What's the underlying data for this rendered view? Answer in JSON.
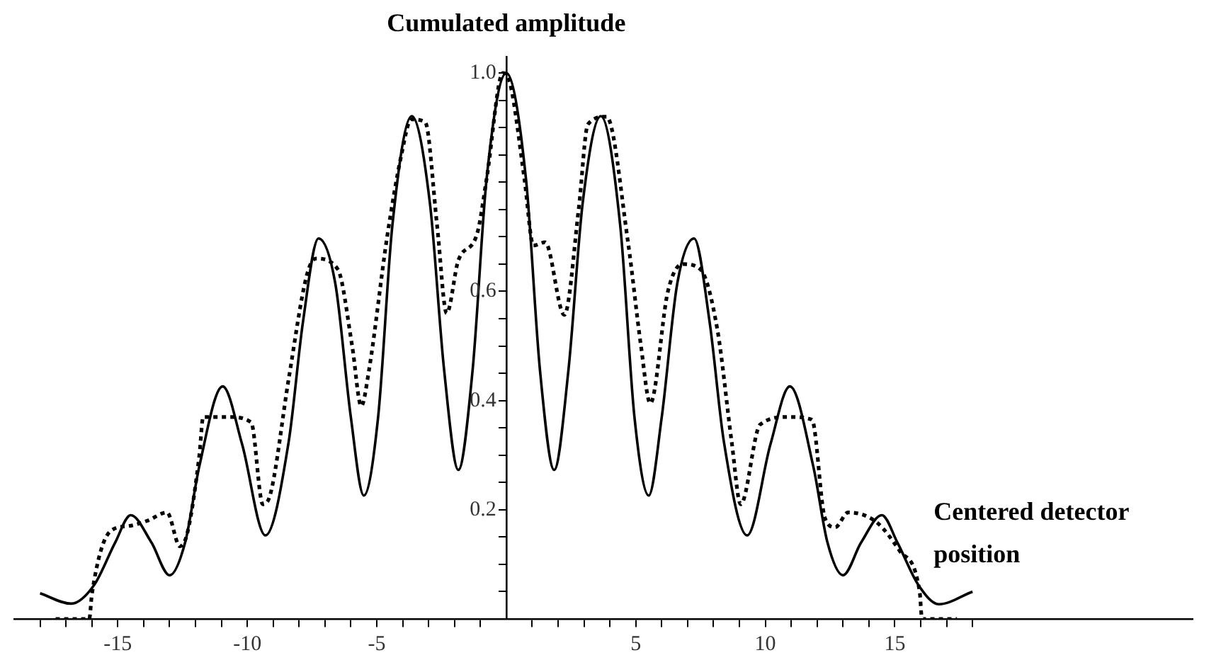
{
  "chart_data": {
    "type": "line",
    "xlabel": "Centered detector position",
    "ylabel": "Cumulated amplitude",
    "xlim": [
      -19,
      26.5
    ],
    "ylim": [
      0,
      1.03
    ],
    "xticks": [
      {
        "value": -18,
        "label": null
      },
      {
        "value": -17,
        "label": null
      },
      {
        "value": -16,
        "label": null
      },
      -15,
      {
        "value": -14,
        "label": null
      },
      {
        "value": -13,
        "label": null
      },
      {
        "value": -12,
        "label": null
      },
      {
        "value": -11,
        "label": null
      },
      -10,
      {
        "value": -9,
        "label": null
      },
      {
        "value": -8,
        "label": null
      },
      {
        "value": -7,
        "label": null
      },
      {
        "value": -6,
        "label": null
      },
      -5,
      {
        "value": -4,
        "label": null
      },
      {
        "value": -3,
        "label": null
      },
      {
        "value": -2,
        "label": null
      },
      {
        "value": -1,
        "label": null
      },
      {
        "value": 1,
        "label": null
      },
      {
        "value": 2,
        "label": null
      },
      {
        "value": 3,
        "label": null
      },
      {
        "value": 4,
        "label": null
      },
      5,
      {
        "value": 6,
        "label": null
      },
      {
        "value": 7,
        "label": null
      },
      {
        "value": 8,
        "label": null
      },
      {
        "value": 9,
        "label": null
      },
      10,
      {
        "value": 11,
        "label": null
      },
      {
        "value": 12,
        "label": null
      },
      {
        "value": 13,
        "label": null
      },
      {
        "value": 14,
        "label": null
      },
      15,
      {
        "value": 16,
        "label": null
      },
      {
        "value": 17,
        "label": null
      },
      {
        "value": 18,
        "label": null
      }
    ],
    "yticks": [
      {
        "value": 0.05,
        "label": null
      },
      {
        "value": 0.1,
        "label": null
      },
      {
        "value": 0.15,
        "label": null
      },
      0.2,
      {
        "value": 0.25,
        "label": null
      },
      {
        "value": 0.3,
        "label": null
      },
      {
        "value": 0.35,
        "label": null
      },
      0.4,
      {
        "value": 0.45,
        "label": null
      },
      {
        "value": 0.5,
        "label": null
      },
      {
        "value": 0.55,
        "label": null
      },
      0.6,
      {
        "value": 0.65,
        "label": null
      },
      {
        "value": 0.7,
        "label": null
      },
      {
        "value": 0.75,
        "label": null
      },
      {
        "value": 0.8,
        "label": null
      },
      {
        "value": 0.85,
        "label": null
      },
      {
        "value": 0.9,
        "label": null
      },
      {
        "value": 0.95,
        "label": null
      },
      {
        "value": 1.0,
        "label": "1.0"
      }
    ],
    "grid": false,
    "legend": false,
    "marker": "none",
    "series": [
      {
        "color": "#000000",
        "line_style": "solid",
        "x": [
          -18,
          -16.8,
          -15.9,
          -15.1,
          -14.5,
          -13.7,
          -13,
          -12.4,
          -11.85,
          -10.95,
          -10.2,
          -9.3,
          -8.4,
          -7.85,
          -7.25,
          -6.6,
          -6,
          -5.5,
          -4.95,
          -4.4,
          -3.65,
          -2.95,
          -2.4,
          -1.85,
          -1.3,
          -0.76,
          0,
          0.76,
          1.3,
          1.85,
          2.4,
          2.95,
          3.65,
          4.4,
          4.95,
          5.5,
          6,
          6.6,
          7.25,
          7.85,
          8.4,
          9.3,
          10.2,
          10.95,
          11.85,
          12.4,
          13,
          13.7,
          14.5,
          15.1,
          15.9,
          16.7,
          18
        ],
        "values": [
          0.047,
          0.028,
          0.063,
          0.14,
          0.19,
          0.14,
          0.08,
          0.14,
          0.28,
          0.426,
          0.32,
          0.153,
          0.325,
          0.544,
          0.697,
          0.614,
          0.369,
          0.226,
          0.369,
          0.72,
          0.921,
          0.762,
          0.456,
          0.273,
          0.456,
          0.806,
          1.0,
          0.806,
          0.456,
          0.273,
          0.456,
          0.762,
          0.921,
          0.72,
          0.369,
          0.226,
          0.369,
          0.614,
          0.697,
          0.544,
          0.325,
          0.153,
          0.32,
          0.426,
          0.28,
          0.14,
          0.08,
          0.14,
          0.19,
          0.14,
          0.063,
          0.027,
          0.05
        ]
      },
      {
        "color": "#000000",
        "line_style": "dotted",
        "x": [
          -17.4,
          -16.1,
          -16,
          -15.3,
          -14.6,
          -13.85,
          -13.1,
          -12.6,
          -12.3,
          -11.85,
          -11.7,
          -10.75,
          -9.85,
          -9.4,
          -9.1,
          -8.4,
          -7.7,
          -7.35,
          -6.5,
          -5.95,
          -5.6,
          -5.3,
          -4.6,
          -4.05,
          -3.67,
          -3.13,
          -2.67,
          -2.3,
          -1.85,
          -1.13,
          -0.76,
          -0.13,
          0.15,
          0.7,
          1.05,
          1.5,
          2.24,
          2.8,
          3.15,
          3.87,
          4.7,
          5.2,
          5.56,
          6.24,
          6.8,
          7.5,
          8.15,
          8.7,
          9.05,
          9.8,
          10.9,
          11.8,
          12.3,
          12.7,
          13.2,
          14.3,
          15.2,
          15.96,
          16.05,
          17.4
        ],
        "values": [
          0,
          0,
          0.045,
          0.16,
          0.17,
          0.18,
          0.195,
          0.133,
          0.16,
          0.3,
          0.37,
          0.37,
          0.36,
          0.21,
          0.23,
          0.44,
          0.63,
          0.66,
          0.64,
          0.5,
          0.39,
          0.456,
          0.7,
          0.85,
          0.915,
          0.91,
          0.72,
          0.56,
          0.657,
          0.705,
          0.806,
          1.0,
          0.98,
          0.806,
          0.684,
          0.69,
          0.557,
          0.753,
          0.906,
          0.92,
          0.69,
          0.5,
          0.395,
          0.6,
          0.65,
          0.64,
          0.53,
          0.325,
          0.21,
          0.356,
          0.37,
          0.365,
          0.185,
          0.168,
          0.195,
          0.177,
          0.124,
          0.05,
          0,
          0
        ]
      }
    ]
  }
}
